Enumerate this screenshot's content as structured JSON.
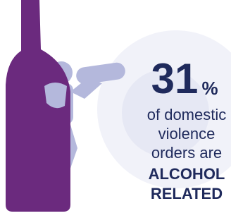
{
  "stat": {
    "value": "31",
    "unit": "%"
  },
  "lines": [
    "of domestic",
    "violence",
    "orders are",
    "ALCOHOL",
    "RELATED"
  ]
}
